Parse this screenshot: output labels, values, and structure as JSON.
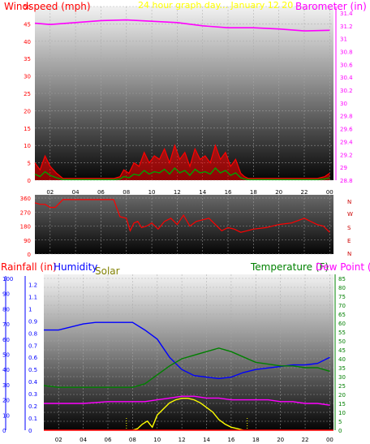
{
  "colors": {
    "windspeed": "#ff0000",
    "barometer": "#ff00ff",
    "direction": "#ff0000",
    "rainfall": "#ff0000",
    "humidity": "#0000ff",
    "solar": "#808000",
    "temperature": "#008000",
    "dewpoint": "#ff00ff",
    "solar_trace": "#ffff00",
    "title": "#ffff00",
    "dir_letters": "#cc0000",
    "grid": "#a8a8a8",
    "axis_text": "#000000"
  },
  "header": {
    "windspeed_label": "Windspeed (mph)",
    "title": "24 hour graph day... January 12 20",
    "barometer_label": "Barometer (in)"
  },
  "bottom_header": {
    "rainfall_label": "Rainfall (in)",
    "humidity_label": "Humidity",
    "solar_label": "Solar",
    "temperature_label": "Temperature (F)",
    "dewpoint_label": "Dew Point ("
  },
  "direction_labels": [
    "N",
    "W",
    "S",
    "E",
    "N"
  ],
  "chart_data": [
    {
      "type": "line",
      "panel": "wind-baro",
      "x_ticks": [
        "02",
        "04",
        "06",
        "08",
        "10",
        "12",
        "14",
        "16",
        "18",
        "20",
        "22",
        "00"
      ],
      "y_left_ticks": [
        "0",
        "5",
        "10",
        "15",
        "20",
        "25",
        "30",
        "35",
        "40",
        "45",
        "50"
      ],
      "y_right_ticks": [
        "28.8",
        "29",
        "29.2",
        "29.4",
        "29.6",
        "29.8",
        "30",
        "30.2",
        "30.4",
        "30.6",
        "30.8",
        "31",
        "31.2",
        "31.4"
      ],
      "ylim_left": [
        0,
        50
      ],
      "ylim_right": [
        28.8,
        31.5
      ],
      "x_range_hours": [
        0.8,
        24.3
      ],
      "series": [
        {
          "name": "Windspeed (mph)",
          "axis": "left",
          "x": [
            0.8,
            1.2,
            1.6,
            2.0,
            2.5,
            3.0,
            4.0,
            5.0,
            6.0,
            7.0,
            7.5,
            7.8,
            8.2,
            8.6,
            9.0,
            9.4,
            9.8,
            10.2,
            10.6,
            11.0,
            11.4,
            11.8,
            12.2,
            12.6,
            13.0,
            13.4,
            13.8,
            14.2,
            14.6,
            15.0,
            15.4,
            15.8,
            16.2,
            16.6,
            17.0,
            17.3,
            17.6,
            18.0,
            19.0,
            20.0,
            21.0,
            22.0,
            23.0,
            23.6,
            24.0
          ],
          "y": [
            5,
            3,
            7,
            4,
            2,
            0.5,
            0.5,
            0.5,
            0.5,
            0.5,
            1,
            3,
            2,
            5,
            4,
            8,
            5,
            7,
            6,
            9,
            5,
            10,
            6,
            8,
            4,
            9,
            6,
            7,
            5,
            10,
            6,
            8,
            4,
            6,
            2,
            1,
            0.5,
            0.5,
            0.5,
            0.5,
            0.5,
            0.5,
            0.5,
            1,
            2
          ]
        },
        {
          "name": "Barometer (in)",
          "axis": "right",
          "x": [
            0.8,
            2,
            4,
            6,
            8,
            10,
            12,
            14,
            16,
            18,
            20,
            22,
            24
          ],
          "y": [
            31.24,
            31.22,
            31.25,
            31.28,
            31.29,
            31.27,
            31.25,
            31.2,
            31.17,
            31.17,
            31.15,
            31.12,
            31.13
          ]
        }
      ]
    },
    {
      "type": "line",
      "panel": "wind-direction",
      "y_ticks": [
        "360",
        "270",
        "180",
        "90",
        "0"
      ],
      "ylim": [
        0,
        360
      ],
      "series": [
        {
          "name": "Wind Direction",
          "x": [
            0.8,
            1.2,
            1.6,
            2.0,
            2.4,
            3.0,
            4.0,
            5.0,
            6.0,
            7.0,
            7.5,
            8.0,
            8.3,
            8.6,
            8.9,
            9.2,
            9.6,
            10.0,
            10.5,
            11.0,
            11.5,
            12.0,
            12.5,
            13.0,
            13.5,
            14.0,
            14.5,
            15.0,
            15.5,
            16.0,
            16.5,
            17.0,
            17.5,
            18.0,
            19.0,
            20.0,
            21.0,
            22.0,
            23.0,
            23.5,
            24.0
          ],
          "y": [
            330,
            320,
            320,
            300,
            300,
            350,
            350,
            350,
            350,
            350,
            240,
            230,
            150,
            200,
            210,
            170,
            180,
            200,
            160,
            210,
            230,
            190,
            250,
            180,
            210,
            220,
            230,
            190,
            150,
            170,
            160,
            140,
            150,
            160,
            170,
            190,
            200,
            230,
            190,
            180,
            140
          ]
        }
      ]
    },
    {
      "type": "line",
      "panel": "rain-humidity-temp",
      "y_rain_ticks": [
        "0",
        "0.1",
        "0.2",
        "0.3",
        "0.4",
        "0.5",
        "0.6",
        "0.7",
        "0.8",
        "0.9",
        "1",
        "1.1",
        "1.2"
      ],
      "y_hum_ticks": [
        "0",
        "10",
        "20",
        "30",
        "40",
        "50",
        "60",
        "70",
        "80",
        "90",
        "100"
      ],
      "y_temp_ticks": [
        "0",
        "5",
        "10",
        "15",
        "20",
        "25",
        "30",
        "35",
        "40",
        "45",
        "50",
        "55",
        "60",
        "65",
        "70",
        "75",
        "80",
        "85"
      ],
      "ylim_rain": [
        0,
        1.25
      ],
      "ylim_humidity": [
        0,
        100
      ],
      "ylim_temperature": [
        0,
        85
      ],
      "series": [
        {
          "name": "Humidity",
          "axis": "humidity",
          "x": [
            0.8,
            2,
            4,
            5,
            6,
            7,
            8,
            9,
            10,
            11,
            12,
            13,
            14,
            15,
            16,
            17,
            18,
            19,
            20,
            21,
            22,
            23,
            24
          ],
          "y": [
            66,
            66,
            70,
            71,
            71,
            71,
            71,
            66,
            60,
            48,
            40,
            36,
            35,
            34,
            35,
            38,
            40,
            41,
            42,
            43,
            43,
            44,
            48
          ]
        },
        {
          "name": "Temperature (F)",
          "axis": "temperature",
          "x": [
            0.8,
            2,
            4,
            6,
            8,
            9,
            10,
            11,
            12,
            13,
            14,
            15,
            16,
            17,
            18,
            19,
            20,
            21,
            22,
            23,
            24
          ],
          "y": [
            25,
            24,
            24,
            24,
            24,
            26,
            31,
            36,
            40,
            42,
            44,
            46,
            44,
            41,
            38,
            37,
            36,
            36,
            35,
            35,
            33
          ]
        },
        {
          "name": "Dew Point",
          "axis": "temperature",
          "x": [
            0.8,
            2,
            4,
            6,
            8,
            9,
            10,
            11,
            12,
            13,
            14,
            15,
            16,
            17,
            18,
            19,
            20,
            21,
            22,
            23,
            24
          ],
          "y": [
            15,
            15,
            15,
            16,
            16,
            16,
            17,
            18,
            19,
            19,
            18,
            18,
            17,
            17,
            17,
            17,
            16,
            16,
            15,
            15,
            14
          ]
        },
        {
          "name": "Solar",
          "axis": "humidity",
          "x": [
            8.0,
            8.4,
            8.8,
            9.2,
            9.6,
            10.0,
            10.5,
            11.0,
            11.5,
            12.0,
            12.5,
            13.0,
            13.5,
            14.0,
            14.5,
            15.0,
            15.5,
            16.0,
            16.5,
            17.0
          ],
          "y": [
            0,
            1,
            4,
            6,
            2,
            10,
            14,
            18,
            20,
            21,
            21,
            20,
            18,
            15,
            12,
            7,
            4,
            2,
            1,
            0
          ]
        },
        {
          "name": "Rainfall (in)",
          "axis": "rain",
          "x": [
            0.8,
            24.3
          ],
          "y": [
            0,
            0
          ]
        }
      ]
    }
  ]
}
